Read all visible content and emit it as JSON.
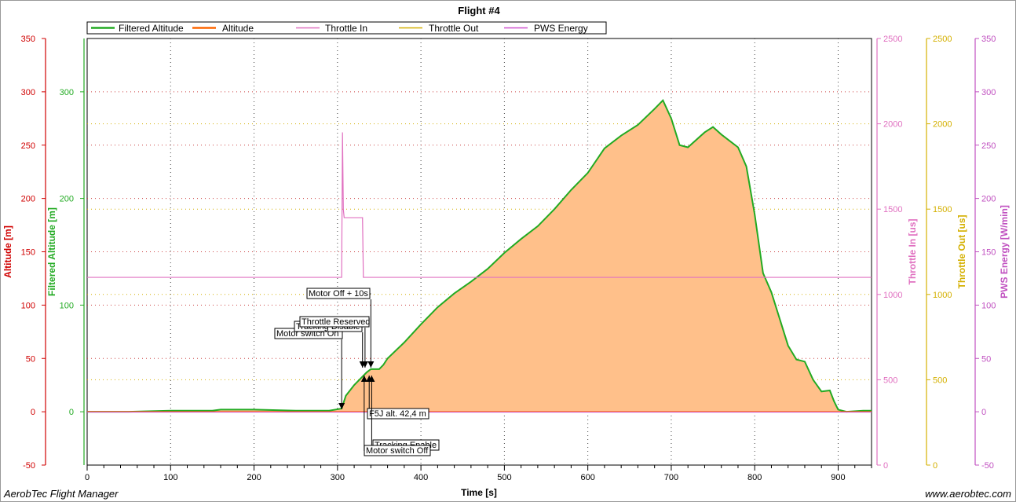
{
  "chart_data": {
    "type": "line",
    "title": "Flight #4",
    "xlabel": "Time [s]",
    "xlim": [
      0,
      940
    ],
    "x_ticks": [
      0,
      100,
      200,
      300,
      400,
      500,
      600,
      700,
      800,
      900
    ],
    "legend": {
      "placement": "top",
      "entries": [
        {
          "name": "Filtered Altitude",
          "color": "#22aa22"
        },
        {
          "name": "Altitude",
          "color": "#ff6600"
        },
        {
          "name": "Throttle In",
          "color": "#e070c0"
        },
        {
          "name": "Throttle Out",
          "color": "#d4b000"
        },
        {
          "name": "PWS Energy",
          "color": "#d050d0"
        }
      ]
    },
    "y_axes": [
      {
        "label": "Altitude [m]",
        "color": "#d00000",
        "side": "left",
        "range": [
          -50,
          350
        ],
        "ticks": [
          -50,
          0,
          50,
          100,
          150,
          200,
          250,
          300,
          350
        ]
      },
      {
        "label": "Filtered Altitude [m]",
        "color": "#22aa22",
        "side": "left",
        "range": [
          -50,
          350
        ],
        "ticks": [
          0,
          100,
          200,
          300
        ]
      },
      {
        "label": "Throttle In [us]",
        "color": "#e070c0",
        "side": "right",
        "range": [
          0,
          2500
        ],
        "ticks": [
          0,
          500,
          1000,
          1500,
          2000,
          2500
        ]
      },
      {
        "label": "Throttle Out [us]",
        "color": "#d4b000",
        "side": "right",
        "range": [
          0,
          2500
        ],
        "ticks": [
          0,
          500,
          1000,
          1500,
          2000,
          2500
        ]
      },
      {
        "label": "PWS Energy [W/min]",
        "color": "#c050c0",
        "side": "right",
        "range": [
          -50,
          350
        ],
        "ticks": [
          -50,
          0,
          50,
          100,
          150,
          200,
          250,
          300,
          350
        ]
      }
    ],
    "grid": true,
    "series": [
      {
        "name": "Filtered Altitude",
        "axis": "Filtered Altitude [m]",
        "fill_color": "#ffc08a",
        "x": [
          0,
          50,
          100,
          150,
          160,
          200,
          250,
          290,
          305,
          310,
          320,
          330,
          335,
          340,
          350,
          355,
          360,
          380,
          400,
          420,
          440,
          460,
          480,
          500,
          520,
          540,
          560,
          580,
          600,
          620,
          640,
          660,
          680,
          690,
          700,
          710,
          720,
          740,
          750,
          760,
          780,
          790,
          800,
          810,
          820,
          840,
          850,
          860,
          870,
          880,
          890,
          895,
          900,
          910,
          930,
          940
        ],
        "y": [
          0,
          0,
          1,
          1,
          2,
          2,
          1,
          1,
          3,
          15,
          25,
          33,
          37,
          40,
          40,
          44,
          50,
          65,
          82,
          98,
          111,
          122,
          134,
          149,
          162,
          174,
          190,
          208,
          224,
          247,
          259,
          269,
          284,
          292,
          275,
          250,
          248,
          262,
          267,
          260,
          248,
          230,
          185,
          130,
          112,
          62,
          49,
          47,
          30,
          19,
          20,
          10,
          2,
          0,
          1,
          1
        ]
      },
      {
        "name": "Altitude",
        "axis": "Altitude [m]",
        "x": [
          0,
          940
        ],
        "y": [
          0,
          0
        ]
      },
      {
        "name": "Throttle In",
        "axis": "Throttle In [us]",
        "x": [
          0,
          303,
          305,
          306,
          307,
          308,
          310,
          330,
          331,
          332,
          940
        ],
        "y": [
          1100,
          1100,
          1100,
          1950,
          1500,
          1450,
          1450,
          1450,
          1100,
          1100,
          1100
        ]
      }
    ],
    "annotations": [
      {
        "text": "Motor switch On",
        "x": 305
      },
      {
        "text": "Tracking Disable",
        "x": 330
      },
      {
        "text": "Throttle Reserved",
        "x": 333
      },
      {
        "text": "Motor Off + 10s",
        "x": 340
      },
      {
        "text": "F5J alt. 42,4 m",
        "x": 338
      },
      {
        "text": "Tracking Enable",
        "x": 341
      },
      {
        "text": "Motor switch Off",
        "x": 332
      }
    ]
  },
  "footer": {
    "left": "AerobTec Flight Manager",
    "right": "www.aerobtec.com"
  }
}
